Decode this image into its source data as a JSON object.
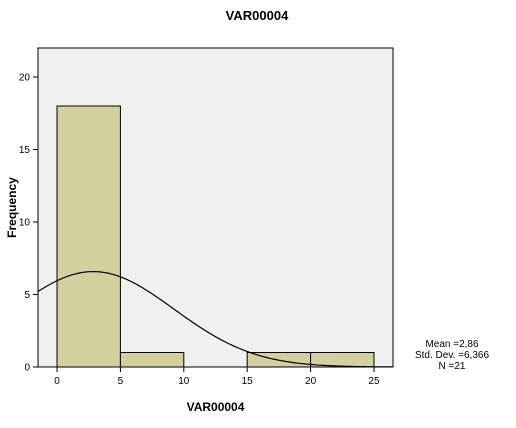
{
  "chart_data": {
    "type": "bar",
    "subtype": "histogram",
    "title": "VAR00004",
    "xlabel": "VAR00004",
    "ylabel": "Frequency",
    "xlim": [
      -1.5,
      26.5
    ],
    "ylim": [
      0,
      22
    ],
    "xticks": [
      0,
      5,
      10,
      15,
      20,
      25
    ],
    "yticks": [
      0,
      5,
      10,
      15,
      20
    ],
    "bins": [
      {
        "start": 0,
        "end": 5,
        "count": 18
      },
      {
        "start": 5,
        "end": 10,
        "count": 1
      },
      {
        "start": 10,
        "end": 15,
        "count": 0
      },
      {
        "start": 15,
        "end": 20,
        "count": 1
      },
      {
        "start": 20,
        "end": 25,
        "count": 1
      }
    ],
    "normal_curve": {
      "mean": 2.86,
      "std_dev": 6.366,
      "n": 21,
      "bin_width": 5
    },
    "stats": {
      "mean_label": "Mean =2,86",
      "std_label": "Std. Dev. =6,366",
      "n_label": "N =21"
    },
    "colors": {
      "bar_fill": "#d5d19f",
      "plot_background": "#f0f0f0",
      "axis": "#000000",
      "curve": "#000000"
    },
    "grid": false,
    "legend": "none"
  }
}
